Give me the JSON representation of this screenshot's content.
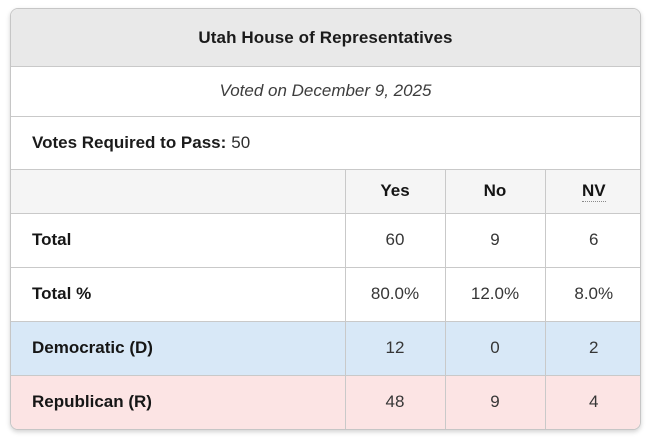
{
  "card": {
    "title": "Utah House of Representatives",
    "subtitle": "Voted on December 9, 2025",
    "votes_required_label": "Votes Required to Pass:",
    "votes_required_value": "50"
  },
  "table": {
    "columns": {
      "label": "",
      "yes": "Yes",
      "no": "No",
      "nv": "NV"
    },
    "rows": [
      {
        "label": "Total",
        "yes": "60",
        "no": "9",
        "nv": "6",
        "row_style": "plain"
      },
      {
        "label": "Total %",
        "yes": "80.0%",
        "no": "12.0%",
        "nv": "8.0%",
        "row_style": "plain"
      },
      {
        "label": "Democratic (D)",
        "yes": "12",
        "no": "0",
        "nv": "2",
        "row_style": "democratic"
      },
      {
        "label": "Republican (R)",
        "yes": "48",
        "no": "9",
        "nv": "4",
        "row_style": "republican"
      }
    ]
  },
  "colors": {
    "header_bg": "#e9e9e9",
    "column_header_bg": "#f5f5f5",
    "democratic_bg": "#d8e8f7",
    "republican_bg": "#fce4e4",
    "border": "#c9c9c9"
  }
}
